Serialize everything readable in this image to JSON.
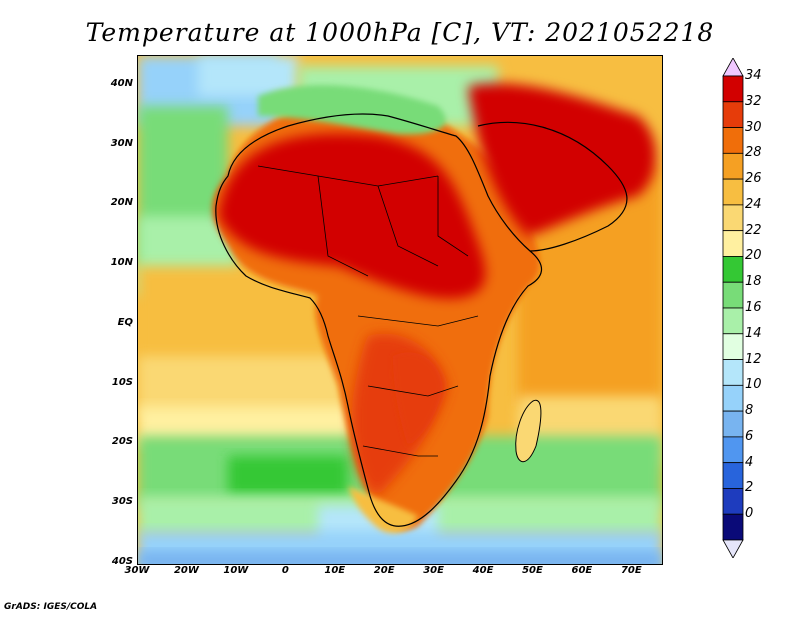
{
  "title": "Temperature at 1000hPa [C], VT: 2021052218",
  "footer": "GrADS: IGES/COLA",
  "map": {
    "lon_range": [
      -30,
      76
    ],
    "lat_range": [
      -40,
      45
    ],
    "lon_ticks": [
      {
        "value": -30,
        "label": "30W"
      },
      {
        "value": -20,
        "label": "20W"
      },
      {
        "value": -10,
        "label": "10W"
      },
      {
        "value": 0,
        "label": "0"
      },
      {
        "value": 10,
        "label": "10E"
      },
      {
        "value": 20,
        "label": "20E"
      },
      {
        "value": 30,
        "label": "30E"
      },
      {
        "value": 40,
        "label": "40E"
      },
      {
        "value": 50,
        "label": "50E"
      },
      {
        "value": 60,
        "label": "60E"
      },
      {
        "value": 70,
        "label": "70E"
      }
    ],
    "lat_ticks": [
      {
        "value": 40,
        "label": "40N"
      },
      {
        "value": 30,
        "label": "30N"
      },
      {
        "value": 20,
        "label": "20N"
      },
      {
        "value": 10,
        "label": "10N"
      },
      {
        "value": 0,
        "label": "EQ"
      },
      {
        "value": -10,
        "label": "10S"
      },
      {
        "value": -20,
        "label": "20S"
      },
      {
        "value": -30,
        "label": "30S"
      },
      {
        "value": -40,
        "label": "40S"
      }
    ]
  },
  "colorbar": {
    "labels": [
      "34",
      "32",
      "30",
      "28",
      "26",
      "24",
      "22",
      "20",
      "18",
      "16",
      "14",
      "12",
      "10",
      "8",
      "6",
      "4",
      "2",
      "0"
    ],
    "colors": [
      "#f0c8ff",
      "#d20000",
      "#e63c0a",
      "#f06e0a",
      "#f5a023",
      "#f7be41",
      "#fad873",
      "#fff0a0",
      "#34c834",
      "#78dc78",
      "#a9f0a9",
      "#e1ffe1",
      "#b4e6fa",
      "#96d2fa",
      "#78b4f0",
      "#5096f0",
      "#2864dc",
      "#1e3cbe",
      "#0a0a78",
      "#e6e6fa"
    ]
  }
}
